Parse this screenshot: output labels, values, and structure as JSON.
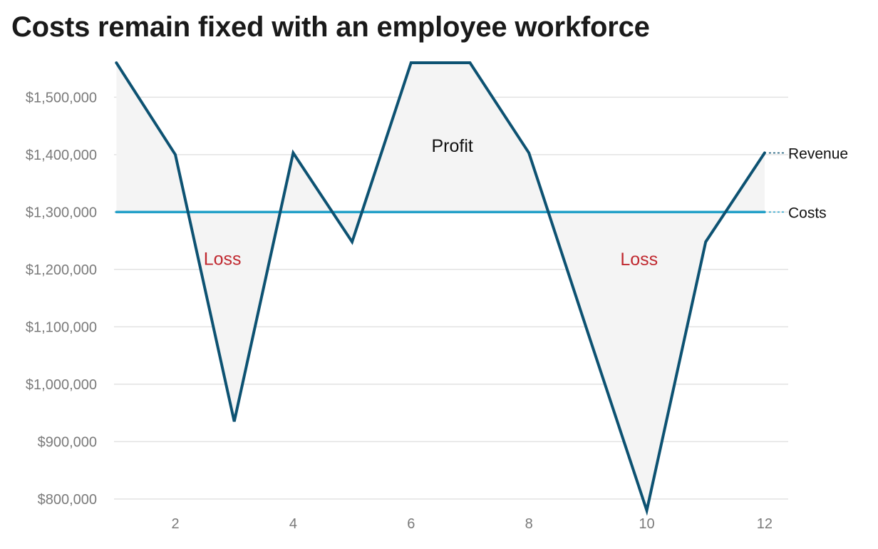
{
  "chart_data": {
    "type": "line",
    "title": "Costs remain fixed with an employee workforce",
    "xlabel": "",
    "ylabel": "",
    "x": [
      1,
      2,
      3,
      4,
      5,
      6,
      7,
      8,
      9,
      10,
      11,
      12
    ],
    "x_ticks": [
      2,
      4,
      6,
      8,
      10,
      12
    ],
    "x_tick_labels": [
      "2",
      "4",
      "6",
      "8",
      "10",
      "12"
    ],
    "xlim": [
      0.96,
      12.4
    ],
    "ylim": [
      775000,
      1570000
    ],
    "y_ticks": [
      800000,
      900000,
      1000000,
      1100000,
      1200000,
      1300000,
      1400000,
      1500000
    ],
    "y_tick_labels": [
      "$800,000",
      "$900,000",
      "$1,000,000",
      "$1,100,000",
      "$1,200,000",
      "$1,300,000",
      "$1,400,000",
      "$1,500,000"
    ],
    "grid": true,
    "series": [
      {
        "name": "Revenue",
        "color": "#0d5272",
        "values": [
          1560000,
          1400000,
          935000,
          1403000,
          1248000,
          1560000,
          1560000,
          1403000,
          1090000,
          780000,
          1248000,
          1403000
        ]
      },
      {
        "name": "Costs",
        "color": "#23a0c8",
        "values": [
          1300000,
          1300000,
          1300000,
          1300000,
          1300000,
          1300000,
          1300000,
          1300000,
          1300000,
          1300000,
          1300000,
          1300000
        ]
      }
    ],
    "area_fill_color": "#f4f4f4",
    "annotations": [
      {
        "text": "Loss",
        "x": 2.8,
        "y": 1208000,
        "color": "#c0282f"
      },
      {
        "text": "Profit",
        "x": 6.7,
        "y": 1405000,
        "color": "#111111"
      },
      {
        "text": "Loss",
        "x": 9.87,
        "y": 1207000,
        "color": "#c0282f"
      }
    ]
  }
}
